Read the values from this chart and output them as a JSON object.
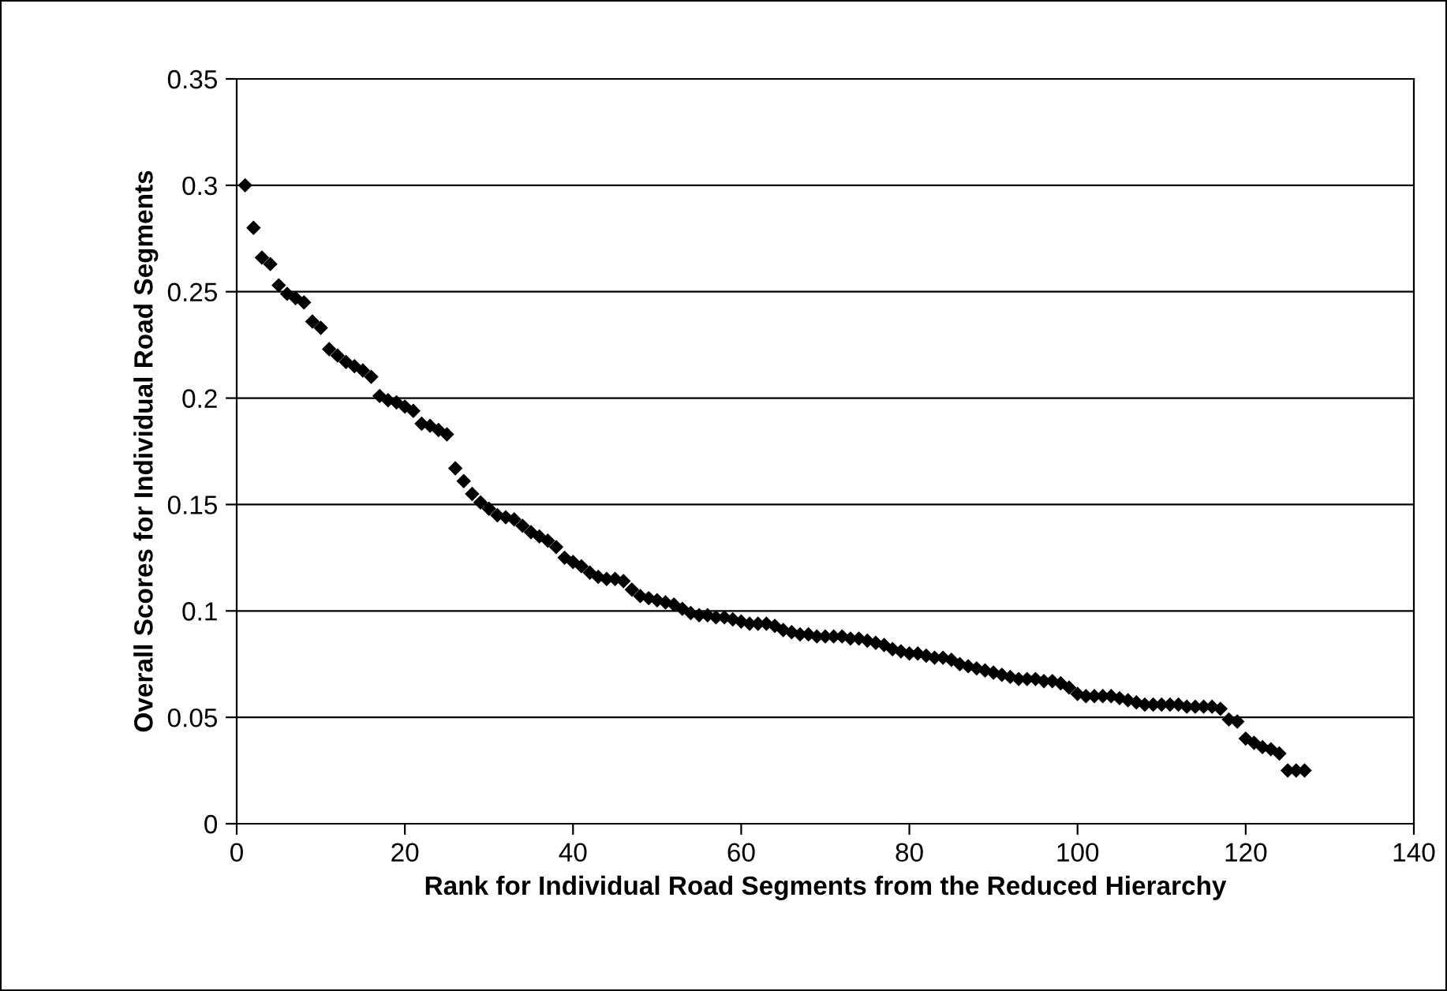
{
  "chart_data": {
    "type": "scatter",
    "xlabel": "Rank for Individual Road Segments from the Reduced Hierarchy",
    "ylabel": "Overall Scores for Individual Road Segments",
    "x": [
      1,
      2,
      3,
      4,
      5,
      6,
      7,
      8,
      9,
      10,
      11,
      12,
      13,
      14,
      15,
      16,
      17,
      18,
      19,
      20,
      21,
      22,
      23,
      24,
      25,
      26,
      27,
      28,
      29,
      30,
      31,
      32,
      33,
      34,
      35,
      36,
      37,
      38,
      39,
      40,
      41,
      42,
      43,
      44,
      45,
      46,
      47,
      48,
      49,
      50,
      51,
      52,
      53,
      54,
      55,
      56,
      57,
      58,
      59,
      60,
      61,
      62,
      63,
      64,
      65,
      66,
      67,
      68,
      69,
      70,
      71,
      72,
      73,
      74,
      75,
      76,
      77,
      78,
      79,
      80,
      81,
      82,
      83,
      84,
      85,
      86,
      87,
      88,
      89,
      90,
      91,
      92,
      93,
      94,
      95,
      96,
      97,
      98,
      99,
      100,
      101,
      102,
      103,
      104,
      105,
      106,
      107,
      108,
      109,
      110,
      111,
      112,
      113,
      114,
      115,
      116,
      117,
      118,
      119,
      120,
      121,
      122,
      123,
      124,
      125,
      126,
      127
    ],
    "series": [
      {
        "color": "#000000",
        "values": [
          0.3,
          0.28,
          0.266,
          0.263,
          0.253,
          0.249,
          0.247,
          0.245,
          0.236,
          0.233,
          0.223,
          0.22,
          0.217,
          0.215,
          0.213,
          0.21,
          0.201,
          0.199,
          0.198,
          0.196,
          0.194,
          0.188,
          0.187,
          0.185,
          0.183,
          0.167,
          0.161,
          0.155,
          0.151,
          0.148,
          0.145,
          0.144,
          0.143,
          0.14,
          0.137,
          0.135,
          0.133,
          0.13,
          0.125,
          0.123,
          0.121,
          0.118,
          0.116,
          0.115,
          0.115,
          0.114,
          0.11,
          0.107,
          0.106,
          0.105,
          0.104,
          0.103,
          0.101,
          0.099,
          0.098,
          0.098,
          0.097,
          0.097,
          0.096,
          0.095,
          0.094,
          0.094,
          0.094,
          0.093,
          0.091,
          0.09,
          0.089,
          0.089,
          0.088,
          0.088,
          0.088,
          0.088,
          0.087,
          0.087,
          0.086,
          0.085,
          0.084,
          0.082,
          0.081,
          0.08,
          0.08,
          0.079,
          0.078,
          0.078,
          0.077,
          0.075,
          0.074,
          0.073,
          0.072,
          0.071,
          0.07,
          0.069,
          0.068,
          0.068,
          0.068,
          0.067,
          0.067,
          0.066,
          0.064,
          0.061,
          0.06,
          0.06,
          0.06,
          0.06,
          0.059,
          0.058,
          0.057,
          0.056,
          0.056,
          0.056,
          0.056,
          0.056,
          0.055,
          0.055,
          0.055,
          0.055,
          0.054,
          0.049,
          0.048,
          0.04,
          0.038,
          0.036,
          0.035,
          0.033,
          0.025,
          0.025,
          0.025
        ]
      }
    ],
    "xlim": [
      0,
      140
    ],
    "xticks": [
      0,
      20,
      40,
      60,
      80,
      100,
      120,
      140
    ],
    "ylim": [
      0,
      0.35
    ],
    "yticks": [
      0,
      0.05,
      0.1,
      0.15,
      0.2,
      0.25,
      0.3,
      0.35
    ],
    "grid": "y",
    "marker": "diamond",
    "legend": false
  }
}
